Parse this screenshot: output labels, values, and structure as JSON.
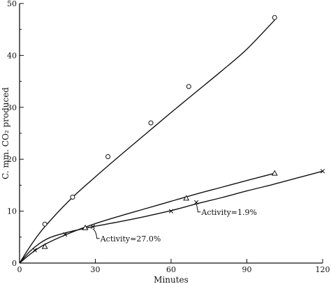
{
  "chart_data": {
    "type": "scatter",
    "xlabel": "Minutes",
    "ylabel": "C. mm. CO₂ produced",
    "xlim": [
      0,
      120
    ],
    "ylim": [
      0,
      50
    ],
    "xticks": [
      0,
      30,
      60,
      90,
      120
    ],
    "yticks": [
      0,
      10,
      20,
      30,
      40,
      50
    ],
    "grid": false,
    "series": [
      {
        "marker": "circle",
        "points": [
          [
            10,
            7.5
          ],
          [
            21,
            12.7
          ],
          [
            35,
            20.5
          ],
          [
            52,
            27.0
          ],
          [
            67,
            34.0
          ],
          [
            101,
            47.3
          ]
        ],
        "curve": [
          [
            0,
            0
          ],
          [
            5,
            3.8
          ],
          [
            10,
            7.0
          ],
          [
            20,
            12.2
          ],
          [
            30,
            16.6
          ],
          [
            40,
            20.8
          ],
          [
            50,
            24.9
          ],
          [
            60,
            29.0
          ],
          [
            70,
            33.0
          ],
          [
            80,
            37.0
          ],
          [
            90,
            41.2
          ],
          [
            101,
            46.8
          ]
        ]
      },
      {
        "marker": "triangle",
        "points": [
          [
            10,
            3.2
          ],
          [
            26,
            6.8
          ],
          [
            66,
            12.5
          ],
          [
            101,
            17.3
          ]
        ],
        "curve": [
          [
            0,
            0
          ],
          [
            5,
            2.0
          ],
          [
            10,
            3.6
          ],
          [
            20,
            5.8
          ],
          [
            30,
            7.6
          ],
          [
            40,
            9.1
          ],
          [
            50,
            10.5
          ],
          [
            60,
            11.9
          ],
          [
            70,
            13.3
          ],
          [
            80,
            14.6
          ],
          [
            90,
            15.9
          ],
          [
            101,
            17.3
          ]
        ]
      },
      {
        "marker": "x",
        "points": [
          [
            6,
            2.5
          ],
          [
            18,
            5.5
          ],
          [
            29,
            7.0
          ],
          [
            60,
            10.0
          ],
          [
            70,
            11.7
          ],
          [
            120,
            17.7
          ]
        ],
        "curve": [
          [
            0,
            0
          ],
          [
            4,
            2.2
          ],
          [
            8,
            3.8
          ],
          [
            12,
            4.9
          ],
          [
            18,
            5.8
          ],
          [
            25,
            6.6
          ],
          [
            30,
            7.1
          ],
          [
            40,
            8.0
          ],
          [
            50,
            9.0
          ],
          [
            60,
            10.1
          ],
          [
            70,
            11.4
          ],
          [
            80,
            12.6
          ],
          [
            90,
            13.9
          ],
          [
            100,
            15.1
          ],
          [
            110,
            16.4
          ],
          [
            120,
            17.7
          ]
        ]
      }
    ],
    "annotations": [
      {
        "text": "Activity=27.0%",
        "anchor": [
          29,
          7.0
        ],
        "label_at": [
          32,
          4.2
        ]
      },
      {
        "text": "Activity=1.9%",
        "anchor": [
          70,
          11.7
        ],
        "label_at": [
          72,
          9.3
        ]
      }
    ]
  }
}
